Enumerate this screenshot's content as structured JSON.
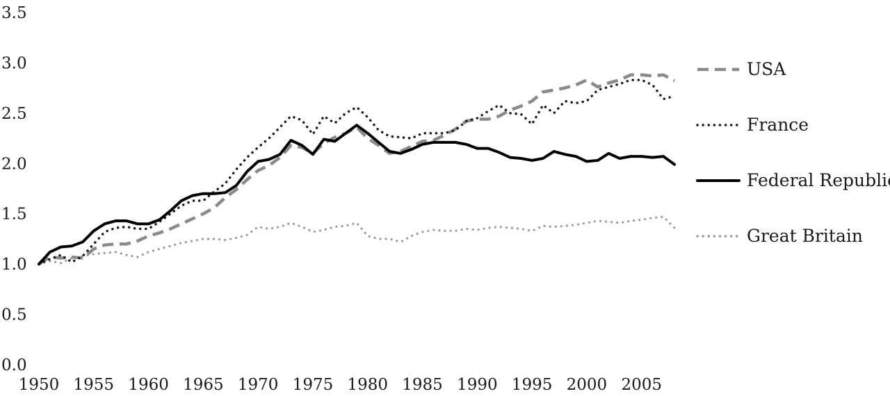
{
  "chart_data": {
    "type": "line",
    "title": "",
    "xlabel": "",
    "ylabel": "",
    "xlim": [
      1950,
      2008
    ],
    "ylim": [
      0.0,
      3.5
    ],
    "grid": false,
    "legend_position": "right",
    "y_ticks": [
      "0.0",
      "0.5",
      "1.0",
      "1.5",
      "2.0",
      "2.5",
      "3.0",
      "3.5"
    ],
    "x_ticks": [
      "1950",
      "1955",
      "1960",
      "1965",
      "1970",
      "1975",
      "1980",
      "1985",
      "1990",
      "1995",
      "2000",
      "2005"
    ],
    "series": [
      {
        "name": "USA",
        "style": "dashed",
        "color": "#8a8a8a",
        "x": [
          1950,
          1951,
          1952,
          1953,
          1954,
          1955,
          1956,
          1957,
          1958,
          1959,
          1960,
          1961,
          1962,
          1963,
          1964,
          1965,
          1966,
          1967,
          1968,
          1969,
          1970,
          1971,
          1972,
          1973,
          1974,
          1975,
          1976,
          1977,
          1978,
          1979,
          1980,
          1981,
          1982,
          1983,
          1984,
          1985,
          1986,
          1987,
          1988,
          1989,
          1990,
          1991,
          1992,
          1993,
          1994,
          1995,
          1996,
          1997,
          1998,
          1999,
          2000,
          2001,
          2002,
          2003,
          2004,
          2005,
          2006,
          2007,
          2008
        ],
        "values": [
          1.0,
          1.07,
          1.06,
          1.07,
          1.06,
          1.15,
          1.19,
          1.2,
          1.2,
          1.23,
          1.28,
          1.31,
          1.35,
          1.4,
          1.45,
          1.5,
          1.56,
          1.66,
          1.74,
          1.84,
          1.93,
          1.98,
          2.06,
          2.18,
          2.16,
          2.1,
          2.2,
          2.26,
          2.3,
          2.36,
          2.25,
          2.18,
          2.1,
          2.12,
          2.17,
          2.22,
          2.23,
          2.28,
          2.34,
          2.42,
          2.44,
          2.44,
          2.47,
          2.53,
          2.57,
          2.62,
          2.71,
          2.73,
          2.75,
          2.78,
          2.83,
          2.76,
          2.8,
          2.83,
          2.88,
          2.88,
          2.87,
          2.88,
          2.82
        ]
      },
      {
        "name": "France",
        "style": "dotted",
        "color": "#1a1a1a",
        "x": [
          1950,
          1951,
          1952,
          1953,
          1954,
          1955,
          1956,
          1957,
          1958,
          1959,
          1960,
          1961,
          1962,
          1963,
          1964,
          1965,
          1966,
          1967,
          1968,
          1969,
          1970,
          1971,
          1972,
          1973,
          1974,
          1975,
          1976,
          1977,
          1978,
          1979,
          1980,
          1981,
          1982,
          1983,
          1984,
          1985,
          1986,
          1987,
          1988,
          1989,
          1990,
          1991,
          1992,
          1993,
          1994,
          1995,
          1996,
          1997,
          1998,
          1999,
          2000,
          2001,
          2002,
          2003,
          2004,
          2005,
          2006,
          2007,
          2008
        ],
        "values": [
          1.0,
          1.05,
          1.09,
          1.02,
          1.08,
          1.2,
          1.32,
          1.36,
          1.37,
          1.35,
          1.35,
          1.42,
          1.5,
          1.58,
          1.63,
          1.63,
          1.72,
          1.8,
          1.94,
          2.06,
          2.16,
          2.25,
          2.36,
          2.47,
          2.43,
          2.29,
          2.47,
          2.4,
          2.5,
          2.56,
          2.46,
          2.33,
          2.27,
          2.26,
          2.25,
          2.3,
          2.3,
          2.3,
          2.33,
          2.42,
          2.45,
          2.52,
          2.58,
          2.5,
          2.49,
          2.39,
          2.58,
          2.5,
          2.62,
          2.6,
          2.62,
          2.73,
          2.76,
          2.79,
          2.83,
          2.83,
          2.78,
          2.64,
          2.67
        ]
      },
      {
        "name": "Federal Republic",
        "style": "solid",
        "color": "#000000",
        "x": [
          1950,
          1951,
          1952,
          1953,
          1954,
          1955,
          1956,
          1957,
          1958,
          1959,
          1960,
          1961,
          1962,
          1963,
          1964,
          1965,
          1966,
          1967,
          1968,
          1969,
          1970,
          1971,
          1972,
          1973,
          1974,
          1975,
          1976,
          1977,
          1978,
          1979,
          1980,
          1981,
          1982,
          1983,
          1984,
          1985,
          1986,
          1987,
          1988,
          1989,
          1990,
          1991,
          1992,
          1993,
          1994,
          1995,
          1996,
          1997,
          1998,
          1999,
          2000,
          2001,
          2002,
          2003,
          2004,
          2005,
          2006,
          2007,
          2008
        ],
        "values": [
          1.0,
          1.12,
          1.17,
          1.18,
          1.22,
          1.33,
          1.4,
          1.43,
          1.43,
          1.4,
          1.4,
          1.44,
          1.53,
          1.63,
          1.68,
          1.7,
          1.7,
          1.71,
          1.78,
          1.92,
          2.02,
          2.04,
          2.09,
          2.23,
          2.18,
          2.09,
          2.24,
          2.22,
          2.3,
          2.38,
          2.3,
          2.21,
          2.12,
          2.1,
          2.14,
          2.19,
          2.21,
          2.21,
          2.21,
          2.19,
          2.15,
          2.15,
          2.11,
          2.06,
          2.05,
          2.03,
          2.05,
          2.12,
          2.09,
          2.07,
          2.02,
          2.03,
          2.1,
          2.05,
          2.07,
          2.07,
          2.06,
          2.07,
          1.99
        ]
      },
      {
        "name": "Great Britain",
        "style": "dotted",
        "color": "#9a9a9a",
        "x": [
          1950,
          1951,
          1952,
          1953,
          1954,
          1955,
          1956,
          1957,
          1958,
          1959,
          1960,
          1961,
          1962,
          1963,
          1964,
          1965,
          1966,
          1967,
          1968,
          1969,
          1970,
          1971,
          1972,
          1973,
          1974,
          1975,
          1976,
          1977,
          1978,
          1979,
          1980,
          1981,
          1982,
          1983,
          1984,
          1985,
          1986,
          1987,
          1988,
          1989,
          1990,
          1991,
          1992,
          1993,
          1994,
          1995,
          1996,
          1997,
          1998,
          1999,
          2000,
          2001,
          2002,
          2003,
          2004,
          2005,
          2006,
          2007,
          2008
        ],
        "values": [
          1.0,
          1.03,
          1.01,
          1.06,
          1.08,
          1.1,
          1.11,
          1.12,
          1.09,
          1.07,
          1.12,
          1.15,
          1.18,
          1.21,
          1.23,
          1.25,
          1.25,
          1.24,
          1.26,
          1.29,
          1.37,
          1.35,
          1.37,
          1.41,
          1.37,
          1.32,
          1.34,
          1.37,
          1.38,
          1.41,
          1.28,
          1.25,
          1.25,
          1.22,
          1.28,
          1.32,
          1.34,
          1.33,
          1.33,
          1.35,
          1.34,
          1.36,
          1.37,
          1.36,
          1.35,
          1.33,
          1.38,
          1.37,
          1.38,
          1.39,
          1.41,
          1.43,
          1.42,
          1.41,
          1.43,
          1.44,
          1.46,
          1.47,
          1.36
        ]
      }
    ]
  }
}
